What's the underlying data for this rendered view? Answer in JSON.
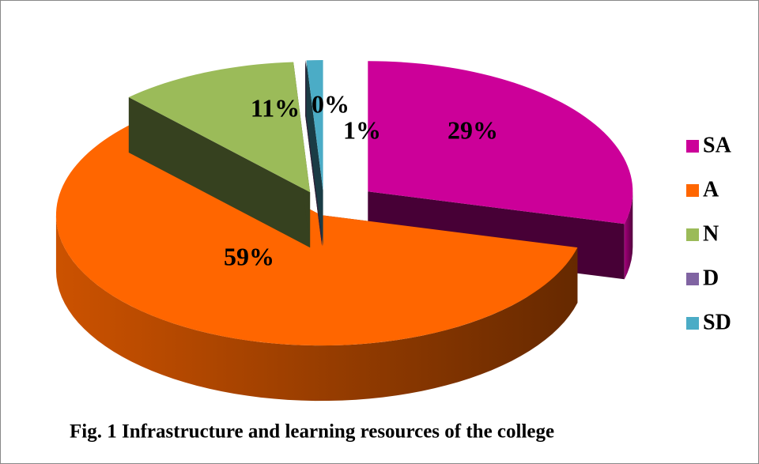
{
  "chart_data": {
    "type": "pie3d",
    "title": "Fig. 1 Infrastructure and learning resources of the college",
    "categories": [
      "SA",
      "A",
      "N",
      "D",
      "SD"
    ],
    "values": [
      29,
      59,
      11,
      0,
      1
    ],
    "value_labels": [
      "29%",
      "59%",
      "11%",
      "0%",
      "1%"
    ],
    "colors": [
      "#cc0099",
      "#ff6600",
      "#9bbb59",
      "#8064a2",
      "#4bacc6"
    ],
    "legend": "right"
  }
}
